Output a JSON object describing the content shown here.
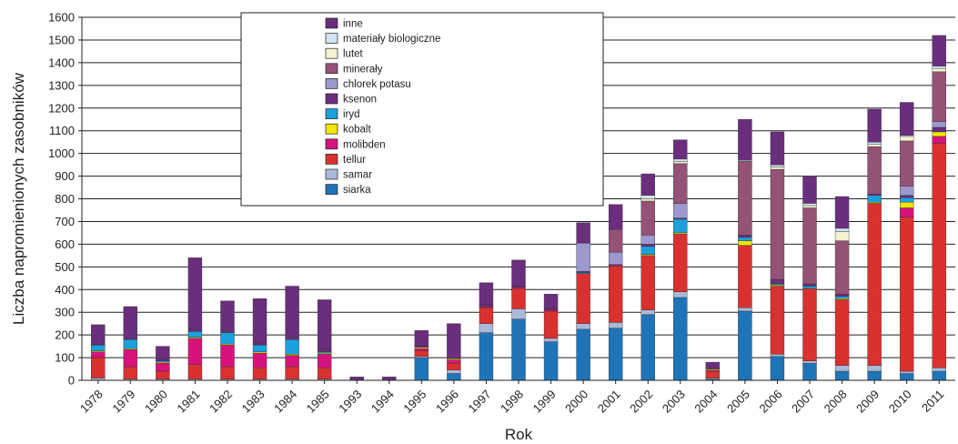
{
  "chart_data": {
    "type": "bar",
    "stacked": true,
    "title": "",
    "xlabel": "Rok",
    "ylabel": "Liczba napromienionych zasobników",
    "ylim": [
      0,
      1600
    ],
    "yticks": [
      0,
      100,
      200,
      300,
      400,
      500,
      600,
      700,
      800,
      900,
      1000,
      1100,
      1200,
      1300,
      1400,
      1500,
      1600
    ],
    "grid": "horizontal",
    "legend_position": "top-left",
    "categories": [
      "1978",
      "1979",
      "1980",
      "1981",
      "1982",
      "1983",
      "1984",
      "1985",
      "1993",
      "1994",
      "1995",
      "1996",
      "1997",
      "1998",
      "1999",
      "2000",
      "2001",
      "2002",
      "2003",
      "2004",
      "2005",
      "2006",
      "2007",
      "2008",
      "2009",
      "2010",
      "2011"
    ],
    "series": [
      {
        "name": "siarka",
        "color": "#1f74b8",
        "values": [
          0,
          0,
          0,
          0,
          0,
          0,
          0,
          0,
          0,
          0,
          100,
          30,
          210,
          270,
          170,
          225,
          230,
          290,
          365,
          5,
          305,
          105,
          75,
          40,
          40,
          30,
          40
        ]
      },
      {
        "name": "samar",
        "color": "#a9b9d9",
        "values": [
          10,
          5,
          5,
          5,
          5,
          5,
          5,
          5,
          0,
          0,
          5,
          15,
          40,
          45,
          15,
          25,
          25,
          20,
          25,
          5,
          15,
          10,
          10,
          25,
          25,
          10,
          15
        ]
      },
      {
        "name": "tellur",
        "color": "#d9312f",
        "values": [
          90,
          55,
          35,
          65,
          55,
          50,
          55,
          50,
          0,
          0,
          25,
          30,
          70,
          90,
          120,
          220,
          250,
          240,
          255,
          30,
          275,
          300,
          320,
          290,
          715,
          680,
          990
        ]
      },
      {
        "name": "molibden",
        "color": "#d8127d",
        "values": [
          25,
          75,
          35,
          115,
          95,
          65,
          50,
          60,
          0,
          0,
          10,
          15,
          5,
          5,
          5,
          0,
          0,
          0,
          0,
          5,
          0,
          0,
          0,
          0,
          0,
          40,
          30
        ]
      },
      {
        "name": "kobalt",
        "color": "#f2e500",
        "values": [
          5,
          5,
          5,
          5,
          5,
          5,
          5,
          5,
          0,
          0,
          5,
          5,
          0,
          0,
          0,
          0,
          0,
          5,
          5,
          5,
          20,
          5,
          0,
          5,
          5,
          25,
          20
        ]
      },
      {
        "name": "iryd",
        "color": "#1aa1dd",
        "values": [
          25,
          40,
          5,
          25,
          50,
          30,
          65,
          5,
          0,
          0,
          0,
          0,
          0,
          0,
          0,
          5,
          0,
          35,
          60,
          0,
          15,
          5,
          10,
          10,
          30,
          20,
          0
        ]
      },
      {
        "name": "ksenon",
        "color": "#6a2e7d",
        "values": [
          5,
          5,
          10,
          10,
          10,
          10,
          10,
          15,
          0,
          0,
          5,
          5,
          10,
          5,
          10,
          5,
          5,
          10,
          5,
          5,
          10,
          20,
          10,
          10,
          5,
          10,
          20
        ]
      },
      {
        "name": "chlorek potasu",
        "color": "#9b99cd",
        "values": [
          0,
          0,
          0,
          0,
          0,
          0,
          0,
          0,
          0,
          0,
          0,
          0,
          0,
          0,
          0,
          125,
          55,
          40,
          65,
          0,
          0,
          0,
          0,
          0,
          0,
          40,
          25
        ]
      },
      {
        "name": "minerały",
        "color": "#945277",
        "values": [
          0,
          0,
          0,
          0,
          0,
          0,
          0,
          0,
          0,
          0,
          0,
          0,
          0,
          0,
          0,
          0,
          100,
          150,
          175,
          0,
          325,
          485,
          335,
          235,
          210,
          200,
          220
        ]
      },
      {
        "name": "lutet",
        "color": "#f4f2d0",
        "values": [
          0,
          0,
          0,
          0,
          0,
          0,
          0,
          0,
          0,
          0,
          0,
          0,
          0,
          0,
          0,
          0,
          0,
          10,
          10,
          0,
          0,
          10,
          10,
          40,
          10,
          20,
          15
        ]
      },
      {
        "name": "materiały biologiczne",
        "color": "#cfe3f2",
        "values": [
          0,
          0,
          0,
          0,
          0,
          0,
          0,
          0,
          0,
          0,
          0,
          0,
          0,
          0,
          0,
          0,
          0,
          15,
          10,
          0,
          5,
          10,
          10,
          15,
          10,
          5,
          10
        ]
      },
      {
        "name": "inne",
        "color": "#6a2e7d",
        "values": [
          85,
          140,
          55,
          315,
          130,
          195,
          225,
          215,
          15,
          15,
          70,
          150,
          95,
          115,
          60,
          90,
          110,
          95,
          85,
          25,
          180,
          145,
          120,
          140,
          145,
          145,
          135
        ]
      }
    ]
  }
}
